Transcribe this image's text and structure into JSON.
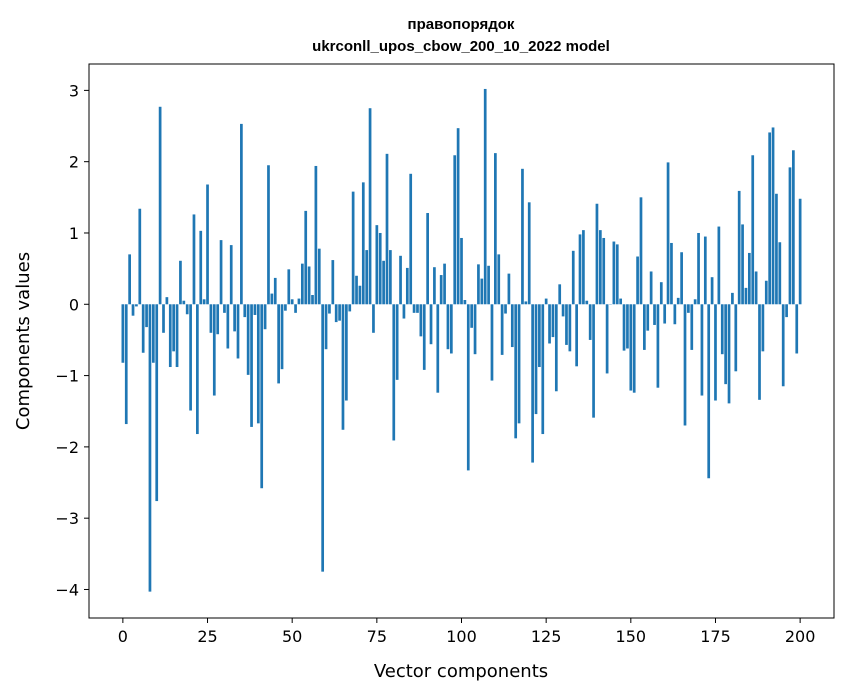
{
  "chart_data": {
    "type": "bar",
    "title": "правопорядок",
    "subtitle": "ukrconll_upos_cbow_200_10_2022 model",
    "xlabel": "Vector components",
    "ylabel": "Components values",
    "xlim": [
      -10,
      210
    ],
    "ylim": [
      -4.4,
      3.37
    ],
    "xticks": [
      0,
      25,
      50,
      75,
      100,
      125,
      150,
      175,
      200
    ],
    "xtick_labels": [
      "0",
      "25",
      "50",
      "75",
      "100",
      "125",
      "150",
      "175",
      "200"
    ],
    "yticks": [
      -4,
      -3,
      -2,
      -1,
      0,
      1,
      2,
      3
    ],
    "ytick_labels": [
      "−4",
      "−3",
      "−2",
      "−1",
      "0",
      "1",
      "2",
      "3"
    ],
    "bar_color": "#1f77b4",
    "values": [
      -0.82,
      -1.68,
      0.7,
      -0.16,
      -0.03,
      1.34,
      -0.68,
      -0.32,
      -4.03,
      -0.82,
      -2.76,
      2.77,
      -0.4,
      0.1,
      -0.88,
      -0.66,
      -0.88,
      0.61,
      0.05,
      -0.14,
      -1.49,
      1.26,
      -1.82,
      1.03,
      0.07,
      1.68,
      -0.4,
      -1.28,
      -0.42,
      0.9,
      -0.12,
      -0.62,
      0.83,
      -0.38,
      -0.76,
      2.53,
      -0.18,
      -0.99,
      -1.72,
      -0.15,
      -1.67,
      -2.58,
      -0.35,
      1.95,
      0.15,
      0.37,
      -1.11,
      -0.91,
      -0.09,
      0.49,
      0.07,
      -0.12,
      0.08,
      0.57,
      1.31,
      0.53,
      0.13,
      1.94,
      0.78,
      -3.75,
      -0.63,
      -0.13,
      0.62,
      -0.25,
      -0.23,
      -1.76,
      -1.35,
      -0.1,
      1.58,
      0.4,
      0.26,
      1.71,
      0.76,
      2.75,
      -0.4,
      1.11,
      1.0,
      0.61,
      2.11,
      0.76,
      -1.91,
      -1.06,
      0.68,
      -0.2,
      0.51,
      1.83,
      -0.12,
      -0.12,
      -0.45,
      -0.92,
      1.28,
      -0.56,
      0.52,
      -1.24,
      0.41,
      0.57,
      -0.63,
      -0.69,
      2.09,
      2.47,
      0.93,
      0.06,
      -2.33,
      -0.33,
      -0.7,
      0.56,
      0.36,
      3.02,
      0.54,
      -1.07,
      2.12,
      0.7,
      -0.71,
      -0.13,
      0.43,
      -0.6,
      -1.88,
      -1.67,
      1.9,
      0.04,
      1.43,
      -2.22,
      -1.54,
      -0.88,
      -1.82,
      0.08,
      -0.55,
      -0.46,
      -1.22,
      0.28,
      -0.17,
      -0.57,
      -0.66,
      0.75,
      -0.87,
      0.98,
      1.04,
      0.05,
      -0.5,
      -1.59,
      1.41,
      1.04,
      0.93,
      -0.97,
      0.0,
      0.88,
      0.84,
      0.08,
      -0.65,
      -0.62,
      -1.21,
      -1.24,
      0.67,
      1.5,
      -0.64,
      -0.37,
      0.46,
      -0.29,
      -1.17,
      0.31,
      -0.27,
      1.99,
      0.86,
      -0.28,
      0.09,
      0.73,
      -1.7,
      -0.12,
      -0.64,
      0.07,
      1.0,
      -1.28,
      0.95,
      -2.44,
      0.38,
      -1.35,
      1.09,
      -0.7,
      -1.12,
      -1.39,
      0.16,
      -0.94,
      1.59,
      1.12,
      0.23,
      0.72,
      2.09,
      0.46,
      -1.34,
      -0.66,
      0.33,
      2.41,
      2.48,
      1.55,
      0.87,
      -1.15,
      -0.18,
      1.92,
      2.16,
      -0.69,
      1.48
    ]
  }
}
